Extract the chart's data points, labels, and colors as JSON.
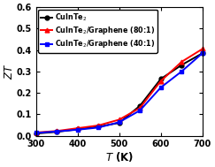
{
  "title": "",
  "xlabel": "$\\it{T}$ (K)",
  "ylabel": "$\\it{ZT}$",
  "xlim": [
    300,
    700
  ],
  "ylim": [
    0,
    0.6
  ],
  "xticks": [
    300,
    400,
    500,
    600,
    700
  ],
  "yticks": [
    0.0,
    0.1,
    0.2,
    0.3,
    0.4,
    0.5,
    0.6
  ],
  "series": [
    {
      "label": "CuInTe$_2$",
      "color": "black",
      "marker": "o",
      "x": [
        300,
        350,
        400,
        450,
        500,
        550,
        600,
        650,
        700
      ],
      "y": [
        0.01,
        0.018,
        0.03,
        0.042,
        0.06,
        0.14,
        0.265,
        0.33,
        0.385
      ]
    },
    {
      "label": "CuInTe$_2$/Graphene (80:1)",
      "color": "red",
      "marker": "^",
      "x": [
        300,
        350,
        400,
        450,
        500,
        550,
        600,
        650,
        700
      ],
      "y": [
        0.015,
        0.022,
        0.035,
        0.048,
        0.075,
        0.13,
        0.255,
        0.345,
        0.405
      ]
    },
    {
      "label": "CuInTe$_2$/Graphene (40:1)",
      "color": "blue",
      "marker": "s",
      "x": [
        300,
        350,
        400,
        450,
        500,
        550,
        600,
        650,
        700
      ],
      "y": [
        0.013,
        0.02,
        0.028,
        0.038,
        0.063,
        0.118,
        0.225,
        0.3,
        0.385
      ]
    }
  ],
  "legend_fontsize": 5.8,
  "axis_fontsize": 8.5,
  "tick_fontsize": 7.0,
  "linewidth": 1.4,
  "markersize": 3.5,
  "background_color": "#ffffff"
}
